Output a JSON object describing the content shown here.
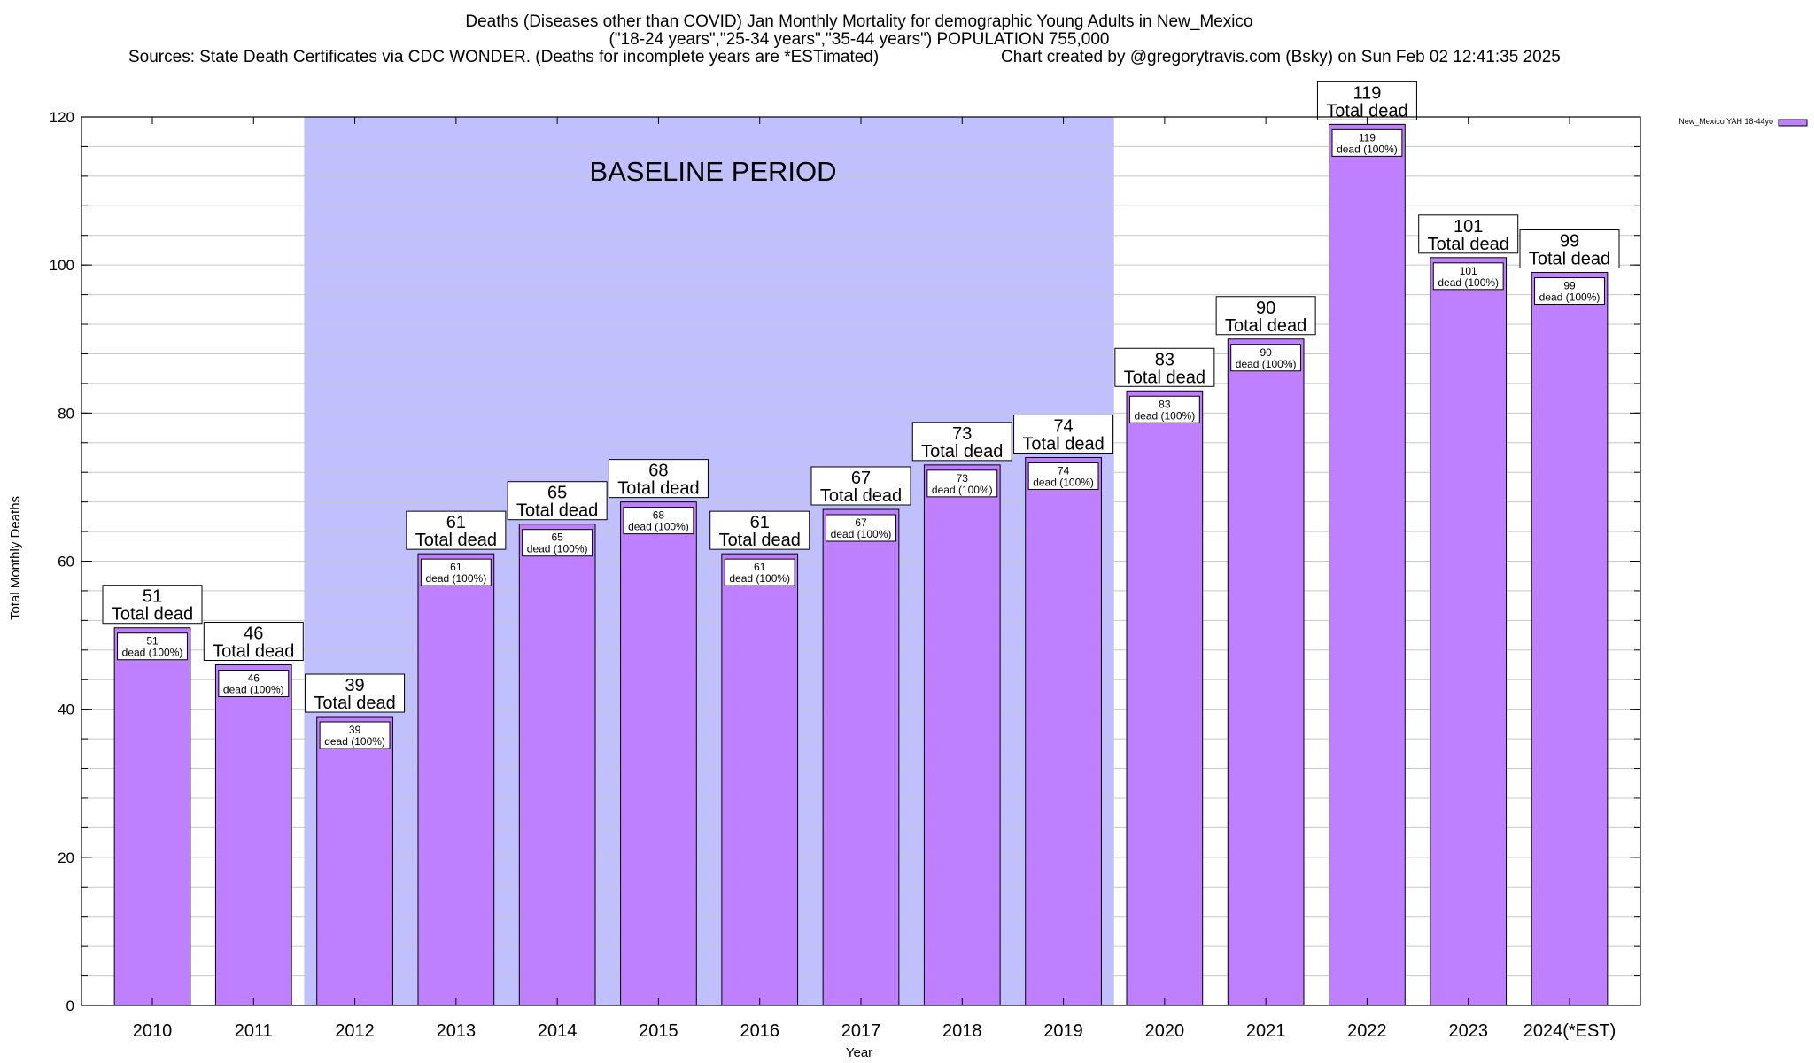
{
  "chart_data": {
    "type": "bar",
    "title_lines": [
      "Deaths (Diseases other than COVID) Jan Monthly Mortality for demographic Young Adults in New_Mexico",
      "(\"18-24 years\",\"25-34 years\",\"35-44 years\") POPULATION 755,000"
    ],
    "sources": "Sources: State Death Certificates via CDC WONDER. (Deaths for incomplete years are *ESTimated)",
    "credit": "Chart created by @gregorytravis.com (Bsky) on Sun Feb 02 12:41:35 2025",
    "xlabel": "Year",
    "ylabel": "Total Monthly Deaths",
    "ylim": [
      0,
      120
    ],
    "yticks": [
      0,
      20,
      40,
      60,
      80,
      100,
      120
    ],
    "minor_step": 4,
    "categories": [
      "2010",
      "2011",
      "2012",
      "2013",
      "2014",
      "2015",
      "2016",
      "2017",
      "2018",
      "2019",
      "2020",
      "2021",
      "2022",
      "2023",
      "2024(*EST)"
    ],
    "values": [
      51,
      46,
      39,
      61,
      65,
      68,
      61,
      67,
      73,
      74,
      83,
      90,
      119,
      101,
      99
    ],
    "total_label": "Total dead",
    "inner_label": "dead (100%)",
    "legend": {
      "label": "New_Mexico YAH 18-44yo",
      "placement": "top-right"
    },
    "baseline": {
      "label": "BASELINE PERIOD",
      "from": "2012",
      "to": "2019",
      "color": "#c0c0ff"
    },
    "colors": {
      "bar": "#bf80ff",
      "bar_stroke": "#000000",
      "grid": "#c8c8c8"
    },
    "grid": true
  }
}
